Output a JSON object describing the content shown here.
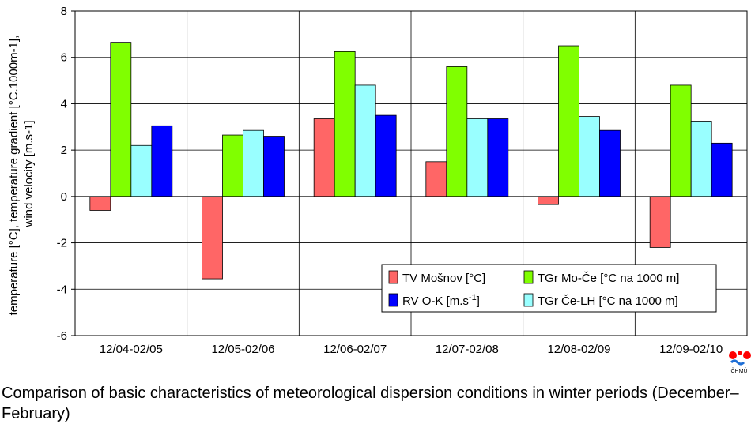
{
  "chart_data": {
    "type": "bar",
    "title": "",
    "xlabel": "",
    "ylabel_line1": "temperature [°C], temperature gradient [°C.1000m-1],",
    "ylabel_line2": "wind velocity [m.s-1]",
    "ylim": [
      -6,
      8
    ],
    "yticks": [
      -6,
      -4,
      -2,
      0,
      2,
      4,
      6,
      8
    ],
    "grid": true,
    "legend_position": "bottom-right",
    "categories": [
      "12/04-02/05",
      "12/05-02/06",
      "12/06-02/07",
      "12/07-02/08",
      "12/08-02/09",
      "12/09-02/10"
    ],
    "series": [
      {
        "name": "TV Mošnov [°C]",
        "color": "#ff6666",
        "values": [
          -0.6,
          -3.55,
          3.35,
          1.5,
          -0.35,
          -2.2
        ]
      },
      {
        "name": "TGr Mo-Če [°C na 1000 m]",
        "color": "#80ff00",
        "values": [
          6.65,
          2.65,
          6.25,
          5.6,
          6.5,
          4.8
        ]
      },
      {
        "name": "TGr Če-LH [°C na 1000 m]",
        "color": "#99ffff",
        "values": [
          2.2,
          2.85,
          4.8,
          3.35,
          3.45,
          3.25
        ]
      },
      {
        "name": "RV O-K [m.s-1]",
        "color": "#0000ff",
        "values": [
          3.05,
          2.6,
          3.5,
          3.35,
          2.85,
          2.3
        ]
      }
    ]
  },
  "logo_text": "ČHMÚ",
  "caption": "Comparison of basic characteristics of meteorological dispersion conditions in winter periods (December–February)"
}
